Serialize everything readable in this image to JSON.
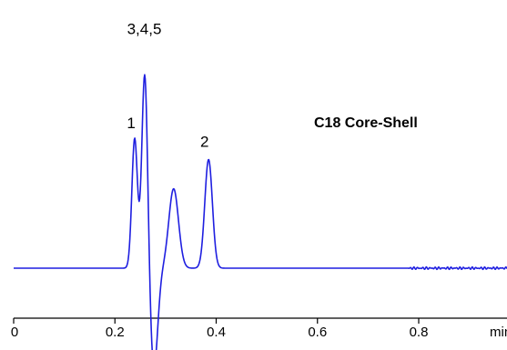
{
  "chart_data": {
    "type": "line",
    "title": "C18 Core-Shell",
    "xlabel": "",
    "ylabel": "",
    "x_unit_label": "min",
    "xlim": [
      0,
      0.95
    ],
    "x_ticks": [
      {
        "value": 0,
        "label": "0"
      },
      {
        "value": 0.2,
        "label": "0.2"
      },
      {
        "value": 0.4,
        "label": "0.4"
      },
      {
        "value": 0.6,
        "label": "0.6"
      },
      {
        "value": 0.8,
        "label": "0.8"
      }
    ],
    "grid": false,
    "legend": "none",
    "baseline_y": 0,
    "ylim": [
      -0.35,
      1.05
    ],
    "series": [
      {
        "color": "#1f1fe0",
        "peaks": [
          {
            "type": "gauss",
            "x": 0.239,
            "height": 0.62,
            "width": 0.0055
          },
          {
            "type": "gauss",
            "x": 0.259,
            "height": 0.95,
            "width": 0.0058
          },
          {
            "type": "gauss",
            "x": 0.277,
            "height": -0.48,
            "width": 0.0075
          },
          {
            "type": "gauss",
            "x": 0.316,
            "height": 0.38,
            "width": 0.0095
          },
          {
            "type": "gauss",
            "x": 0.385,
            "height": 0.52,
            "width": 0.0075
          }
        ]
      }
    ],
    "annotations": [
      {
        "text": "1",
        "x": 0.232,
        "y": 0.67
      },
      {
        "text": "3,4,5",
        "x": 0.258,
        "y": 1.12
      },
      {
        "text": "2",
        "x": 0.377,
        "y": 0.58
      }
    ]
  }
}
